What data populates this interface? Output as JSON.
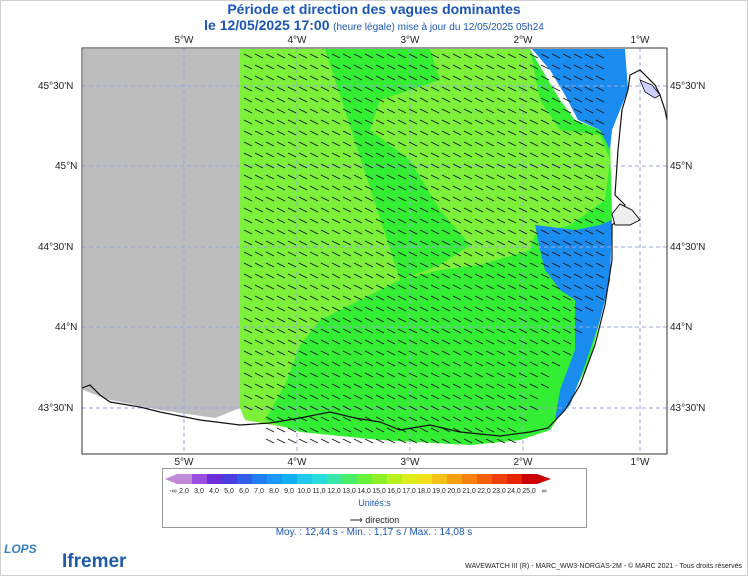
{
  "header": {
    "title": "Période et direction des vagues dominantes",
    "date_prefix": "le 12/05/2025 17:00",
    "date_note": "(heure légale) mise à jour du 12/05/2025 05h24"
  },
  "map": {
    "lon_labels": [
      "5°W",
      "4°W",
      "3°W",
      "2°W",
      "1°W"
    ],
    "lat_labels": [
      "45°30'N",
      "45°N",
      "44°30'N",
      "44°N",
      "43°30'N"
    ],
    "colors": {
      "land": "#ffffff",
      "no_data": "#bdbdbd",
      "blue": "#1a8cf0",
      "cyan": "#22c8ee",
      "green_light": "#7df03a",
      "green_bright": "#33ee33",
      "arrow": "#111111",
      "grid": "#9aa6e0"
    },
    "wave_direction": "southeast"
  },
  "legend": {
    "ticks": [
      "2,0",
      "3,0",
      "4,0",
      "5,0",
      "6,0",
      "7,0",
      "8,0",
      "9,0",
      "10,0",
      "11,0",
      "12,0",
      "13,0",
      "14,0",
      "15,0",
      "16,0",
      "17,0",
      "18,0",
      "19,0",
      "20,0",
      "21,0",
      "22,0",
      "23,0",
      "24,0",
      "25,0"
    ],
    "colors": [
      "#c08ad8",
      "#9a4fe0",
      "#6b2ed8",
      "#4b3ee0",
      "#2f5fe8",
      "#1f7ff0",
      "#1a98f4",
      "#15b0f4",
      "#22c8ee",
      "#28dcdc",
      "#3ae6a8",
      "#4aee66",
      "#66f238",
      "#8ef028",
      "#b8f020",
      "#dcee1c",
      "#f2e018",
      "#f6c014",
      "#f8a010",
      "#f8800c",
      "#f46008",
      "#ee4006",
      "#e62404",
      "#cc0000"
    ],
    "unit_label": "Unités:s",
    "direction_label": "direction"
  },
  "stats": "Moy. : 12,44 s  -  Min. : 1,17 s / Max. : 14,08 s",
  "footer": {
    "logo_lops": "LOPS",
    "logo_ifremer": "Ifremer",
    "credit": "WAVEWATCH III (R) - MARC_WW3-NORGAS-2M - © MARC 2021 - Tous droits réservés"
  }
}
